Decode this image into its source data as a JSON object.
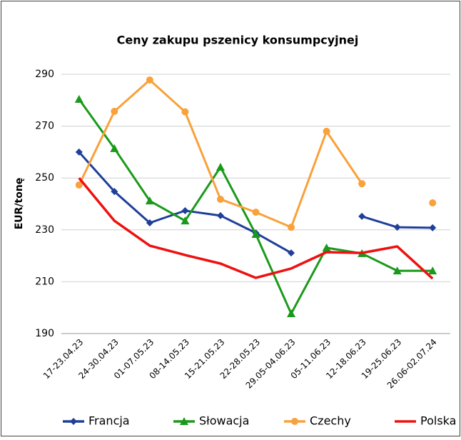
{
  "chart_data": {
    "type": "line",
    "title": "Ceny zakupu pszenicy konsumpcyjnej",
    "y_label": "EUR/tonę",
    "categories": [
      "17-23.04.23",
      "24-30.04.23",
      "01-07.05.23",
      "08-14.05.23",
      "15-21.05.23",
      "22-28.05.23",
      "29.05-04.06.23",
      "05-11.06.23",
      "12-18.06.23",
      "19-25.06.23",
      "26.06-02.07.24"
    ],
    "series": [
      {
        "name": "Francja",
        "color": "#1f3f99",
        "marker": "diamond",
        "values": [
          260,
          244.8,
          232.7,
          237.4,
          235.5,
          228.8,
          221.1,
          null,
          235.2,
          231,
          230.8
        ]
      },
      {
        "name": "Słowacja",
        "color": "#1a9a1a",
        "marker": "triangle",
        "values": [
          280.4,
          261.4,
          241.2,
          233.5,
          254.2,
          228.3,
          197.7,
          223.1,
          220.9,
          214.2,
          214.2
        ]
      },
      {
        "name": "Czechy",
        "color": "#f9a13a",
        "marker": "circle",
        "values": [
          247.3,
          275.7,
          287.8,
          275.5,
          241.8,
          236.8,
          231,
          268,
          247.8,
          null,
          240.4
        ]
      },
      {
        "name": "Polska",
        "color": "#ee1111",
        "marker": "none",
        "values": [
          250,
          233.5,
          223.9,
          220.3,
          217,
          211.5,
          215.1,
          221.4,
          221.1,
          223.6,
          211.2
        ]
      }
    ],
    "ylim": [
      190,
      290
    ],
    "yticks": [
      190,
      210,
      230,
      250,
      270,
      290
    ],
    "grid": true,
    "legend": "bottom"
  }
}
